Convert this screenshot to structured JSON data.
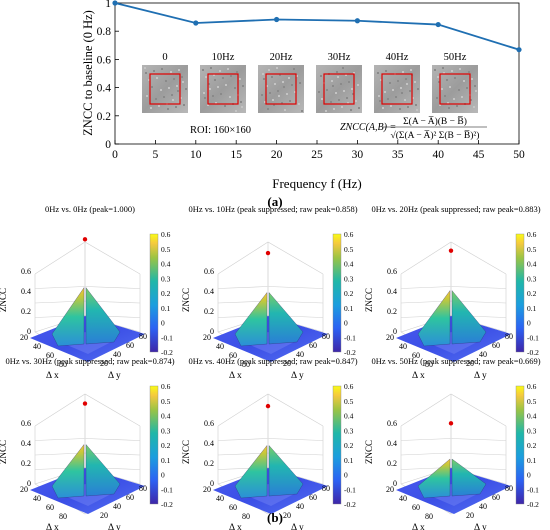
{
  "chart_data": [
    {
      "type": "line",
      "panel_label": "(a)",
      "x": [
        0,
        10,
        20,
        30,
        40,
        50
      ],
      "values": [
        1.0,
        0.858,
        0.883,
        0.874,
        0.847,
        0.669
      ],
      "xlabel": "Frequency f (Hz)",
      "ylabel": "ZNCC to baseline (0 Hz)",
      "xlim": [
        0,
        50
      ],
      "ylim": [
        0,
        1
      ],
      "xticks": [
        "0",
        "5",
        "10",
        "15",
        "20",
        "25",
        "30",
        "35",
        "40",
        "45",
        "50"
      ],
      "yticks": [
        "0",
        "0.2",
        "0.4",
        "0.6",
        "0.8",
        "1"
      ],
      "line_color": "#1f6fb2",
      "inset_labels": [
        "0",
        "10Hz",
        "20Hz",
        "30Hz",
        "40Hz",
        "50Hz"
      ],
      "roi_text": "ROI:   160×160",
      "formula": {
        "lhs": "ZNCC(A,B) =",
        "numerator": "Σ(A − A̅)(B − B̅)",
        "denominator": "√(Σ(A − A̅)² Σ(B − B̅)²)"
      }
    },
    {
      "type": "surface",
      "panel_label": "(b)",
      "zlabel": "ZNCC",
      "xlabel": "Δ x",
      "ylabel": "Δ y",
      "x_ticks": [
        "20",
        "40",
        "60",
        "80"
      ],
      "y_ticks": [
        "20",
        "40",
        "60",
        "80"
      ],
      "z_ticks": [
        "0",
        "0.2",
        "0.4",
        "0.6"
      ],
      "colorbar_ticks": [
        "0.6",
        "0.5",
        "0.4",
        "0.3",
        "0.2",
        "0.1",
        "0",
        "-0.1",
        "-0.2"
      ],
      "colorbar_range": [
        -0.2,
        0.6
      ],
      "panels": [
        {
          "title": "0Hz vs. 0Hz    (peak=1.000)",
          "peak": 1.0,
          "ridge": 0.5
        },
        {
          "title": "0Hz vs. 10Hz    (peak suppressed; raw peak=0.858)",
          "peak": 0.858,
          "ridge": 0.45
        },
        {
          "title": "0Hz vs. 20Hz    (peak suppressed; raw peak=0.883)",
          "peak": 0.883,
          "ridge": 0.47
        },
        {
          "title": "0Hz vs. 30Hz    (peak suppressed; raw peak=0.874)",
          "peak": 0.874,
          "ridge": 0.45
        },
        {
          "title": "0Hz vs. 40Hz    (peak suppressed; raw peak=0.847)",
          "peak": 0.847,
          "ridge": 0.44
        },
        {
          "title": "0Hz vs. 50Hz    (peak suppressed; raw peak=0.669)",
          "peak": 0.669,
          "ridge": 0.3
        }
      ]
    }
  ]
}
